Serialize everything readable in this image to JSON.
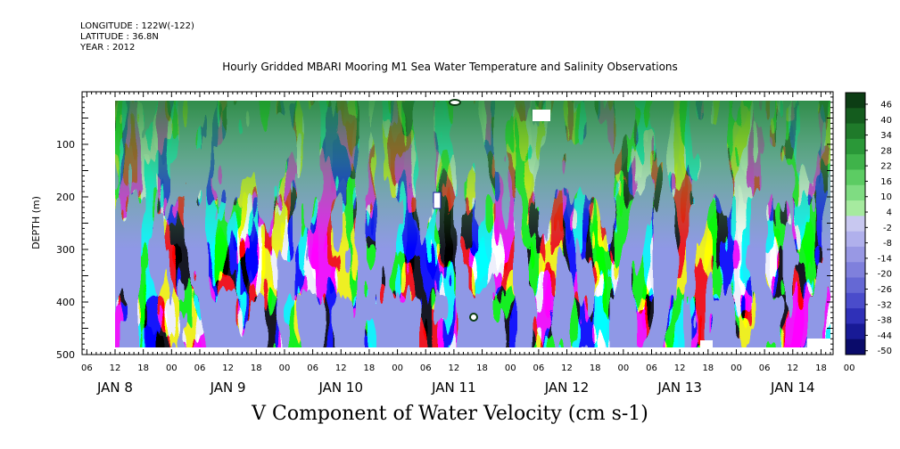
{
  "header": {
    "longitude": "LONGITUDE : 122W(-122)",
    "latitude": "LATITUDE : 36.8N",
    "year": "YEAR : 2012"
  },
  "chart_data": {
    "type": "heatmap",
    "title": "Hourly Gridded MBARI Mooring M1 Sea Water Temperature and Salinity Observations",
    "subtitle": "V Component of Water Velocity (cm s-1)",
    "ylabel": "DEPTH (m)",
    "xlabel": "",
    "ylim": [
      500,
      0
    ],
    "yticks": [
      100,
      200,
      300,
      400,
      500
    ],
    "x_range_hours": [
      0,
      164
    ],
    "data_start_hour": 12,
    "hour_tick_labels": [
      "06",
      "12",
      "18",
      "00",
      "06",
      "12",
      "18",
      "00",
      "06",
      "12",
      "18",
      "00",
      "06",
      "12",
      "18",
      "00",
      "06",
      "12",
      "18",
      "00",
      "06",
      "12",
      "18",
      "00",
      "06",
      "12",
      "18",
      "00"
    ],
    "day_labels": [
      "JAN  8",
      "JAN  9",
      "JAN 10",
      "JAN 11",
      "JAN 12",
      "JAN 13",
      "JAN 14"
    ],
    "colorbar": {
      "labels": [
        "46",
        "40",
        "34",
        "28",
        "22",
        "16",
        "10",
        "4",
        "-2",
        "-8",
        "-14",
        "-20",
        "-26",
        "-32",
        "-38",
        "-44",
        "-50"
      ],
      "colors": [
        "#0c3d14",
        "#145c1e",
        "#1f7a2a",
        "#2a9838",
        "#3fb34a",
        "#5ccc63",
        "#7fdc82",
        "#a6ea9f",
        "#c8c8f0",
        "#b0b0ec",
        "#9898e4",
        "#7f80dc",
        "#6568d4",
        "#4a4ccb",
        "#2f30b8",
        "#181a96",
        "#0a0b6a"
      ],
      "ticks": [
        46,
        40,
        34,
        28,
        22,
        16,
        10,
        4,
        -2,
        -8,
        -14,
        -20,
        -26,
        -32,
        -38,
        -44,
        -50
      ]
    },
    "grid": false,
    "legend": "right"
  }
}
